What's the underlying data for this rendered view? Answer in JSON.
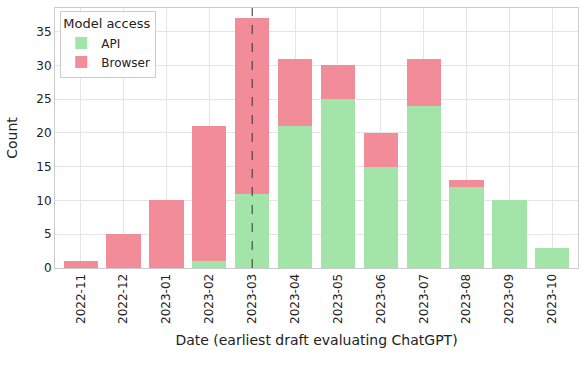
{
  "chart_data": {
    "type": "bar",
    "stacked": true,
    "x_label": "Date (earliest draft evaluating ChatGPT)",
    "y_label": "Count",
    "legend_title": "Model access",
    "legend": "upper left",
    "grid": true,
    "categories": [
      "2022-11",
      "2022-12",
      "2023-01",
      "2023-02",
      "2023-03",
      "2023-04",
      "2023-05",
      "2023-06",
      "2023-07",
      "2023-08",
      "2023-09",
      "2023-10"
    ],
    "series": [
      {
        "name": "API",
        "color": "#a3e4a8",
        "values": [
          0,
          0,
          0,
          1,
          11,
          21,
          25,
          15,
          24,
          12,
          10,
          3
        ]
      },
      {
        "name": "Browser",
        "color": "#f28c98",
        "values": [
          1,
          5,
          10,
          20,
          26,
          10,
          5,
          5,
          7,
          1,
          0,
          0
        ]
      }
    ],
    "vline": "2023-03",
    "ylim": [
      0,
      38.5
    ],
    "yticks": [
      0,
      5,
      10,
      15,
      20,
      25,
      30,
      35
    ]
  }
}
